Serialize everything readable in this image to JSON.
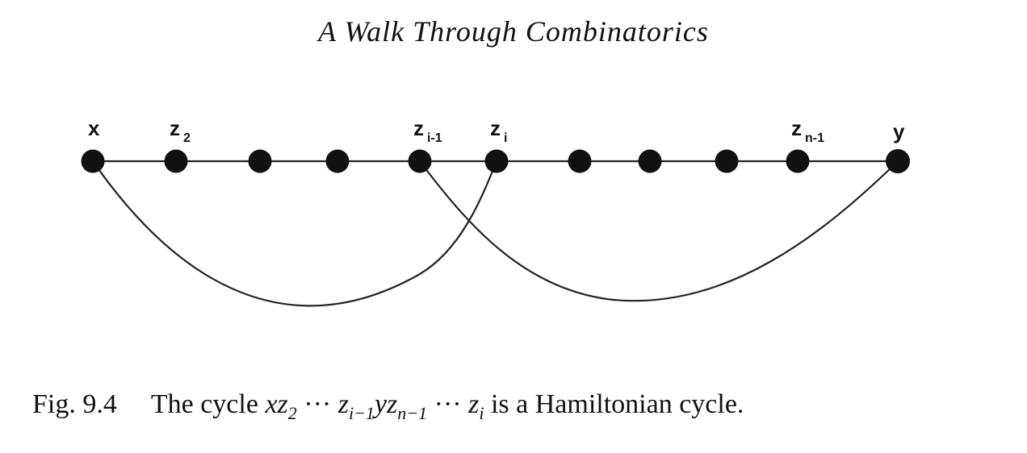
{
  "running_head": "A Walk Through Combinatorics",
  "figure": {
    "vertices": [
      {
        "label": "x"
      },
      {
        "label": "z",
        "sub": "2"
      },
      {
        "label": ""
      },
      {
        "label": ""
      },
      {
        "label": "z",
        "sub": "i-1"
      },
      {
        "label": "z",
        "sub": "i"
      },
      {
        "label": ""
      },
      {
        "label": ""
      },
      {
        "label": ""
      },
      {
        "label": "z",
        "sub": "n-1"
      },
      {
        "label": "y"
      }
    ]
  },
  "caption": {
    "figure_number": "Fig. 9.4",
    "text_before": "The cycle ",
    "math": {
      "x": "x",
      "z": "z",
      "two": "2",
      "dots1": " ··· ",
      "z2": "z",
      "i_minus_1": "i−1",
      "y": "y",
      "z3": "z",
      "n_minus_1": "n−1",
      "dots2": " ··· ",
      "z4": "z",
      "i": "i"
    },
    "text_after": " is a Hamiltonian cycle."
  }
}
